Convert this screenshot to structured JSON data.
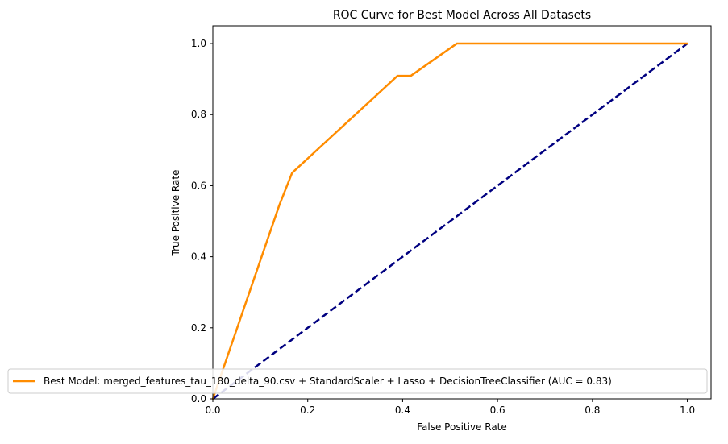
{
  "chart_data": {
    "type": "line",
    "title": "ROC Curve for Best Model Across All Datasets",
    "xlabel": "False Positive Rate",
    "ylabel": "True Positive Rate",
    "xlim": [
      0.0,
      1.05
    ],
    "ylim": [
      0.0,
      1.05
    ],
    "x_ticks": [
      0.0,
      0.2,
      0.4,
      0.6,
      0.8,
      1.0
    ],
    "x_tick_labels": [
      "0.0",
      "0.2",
      "0.4",
      "0.6",
      "0.8",
      "1.0"
    ],
    "y_ticks": [
      0.0,
      0.2,
      0.4,
      0.6,
      0.8,
      1.0
    ],
    "y_tick_labels": [
      "0.0",
      "0.2",
      "0.4",
      "0.6",
      "0.8",
      "1.0"
    ],
    "grid": false,
    "legend_position": "lower-right",
    "series": [
      {
        "name": "Best Model: merged_features_tau_180_delta_90.csv + StandardScaler + Lasso + DecisionTreeClassifier (AUC = 0.83)",
        "color": "#ff8c00",
        "style": "solid",
        "x": [
          0.0,
          0.0,
          0.14,
          0.167,
          0.389,
          0.417,
          0.514,
          1.0
        ],
        "y": [
          0.0,
          0.0,
          0.545,
          0.636,
          0.909,
          0.909,
          1.0,
          1.0
        ]
      },
      {
        "name": "",
        "color": "#000080",
        "style": "dashed",
        "x": [
          0.0,
          1.0
        ],
        "y": [
          0.0,
          1.0
        ]
      }
    ]
  }
}
